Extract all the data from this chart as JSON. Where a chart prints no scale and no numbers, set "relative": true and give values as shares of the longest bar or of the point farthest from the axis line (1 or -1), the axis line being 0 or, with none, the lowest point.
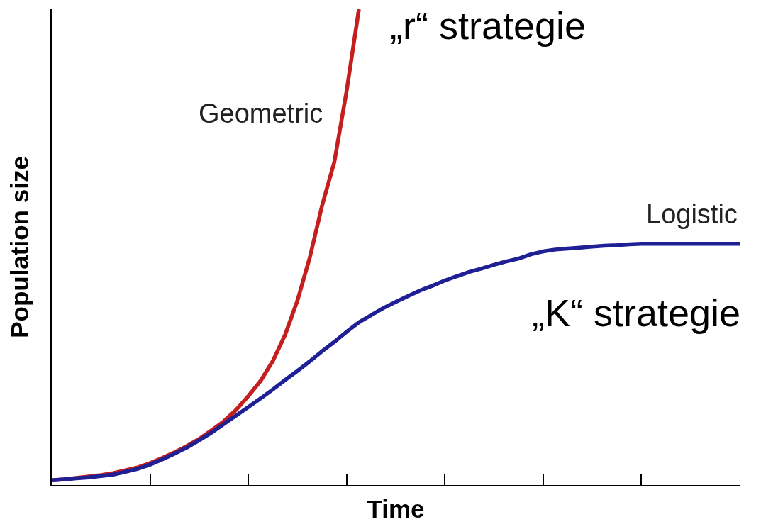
{
  "chart_data": {
    "type": "line",
    "relative": true,
    "xlabel": "Time",
    "ylabel": "Population size",
    "categories": [
      null,
      null,
      null,
      null,
      null,
      null,
      null,
      null,
      null,
      null,
      null,
      null,
      null,
      null,
      null,
      null,
      null,
      null,
      null,
      null,
      null,
      null,
      null,
      null,
      null,
      null,
      null,
      null,
      null,
      null,
      null,
      null,
      null,
      null,
      null,
      null,
      null,
      null,
      null,
      null,
      null,
      null,
      null,
      null,
      null,
      null,
      null,
      null,
      null,
      null,
      null,
      null,
      null,
      null,
      null,
      null,
      null
    ],
    "series": [
      {
        "name": "Geometric",
        "color": "#c41e1e",
        "values": [
          0.01,
          0.012,
          0.015,
          0.018,
          0.021,
          0.025,
          0.031,
          0.037,
          0.046,
          0.057,
          0.069,
          0.082,
          0.097,
          0.115,
          0.134,
          0.158,
          0.187,
          0.219,
          0.261,
          0.316,
          0.388,
          0.478,
          0.587,
          0.679,
          0.828,
          1.0,
          null,
          null,
          null,
          null,
          null,
          null,
          null,
          null,
          null,
          null,
          null,
          null,
          null,
          null,
          null,
          null,
          null,
          null,
          null,
          null,
          null,
          null,
          null,
          null,
          null,
          null,
          null,
          null,
          null,
          null,
          null
        ]
      },
      {
        "name": "Logistic",
        "color": "#1f1f96",
        "values": [
          0.01,
          0.012,
          0.014,
          0.016,
          0.019,
          0.022,
          0.028,
          0.034,
          0.043,
          0.054,
          0.066,
          0.079,
          0.094,
          0.11,
          0.128,
          0.146,
          0.164,
          0.182,
          0.201,
          0.221,
          0.24,
          0.26,
          0.281,
          0.301,
          0.322,
          0.342,
          0.357,
          0.372,
          0.385,
          0.397,
          0.409,
          0.419,
          0.43,
          0.439,
          0.448,
          0.455,
          0.463,
          0.47,
          0.476,
          0.485,
          0.491,
          0.495,
          0.497,
          0.499,
          0.501,
          0.503,
          0.504,
          0.506,
          0.507,
          0.507,
          0.507,
          0.507,
          0.507,
          0.507,
          0.507,
          0.507,
          0.507
        ]
      }
    ],
    "annotations": [
      "„r“ strategie",
      "„K“ strategie"
    ],
    "legend": false,
    "grid": false,
    "marker": "none",
    "line_style": "solid"
  }
}
